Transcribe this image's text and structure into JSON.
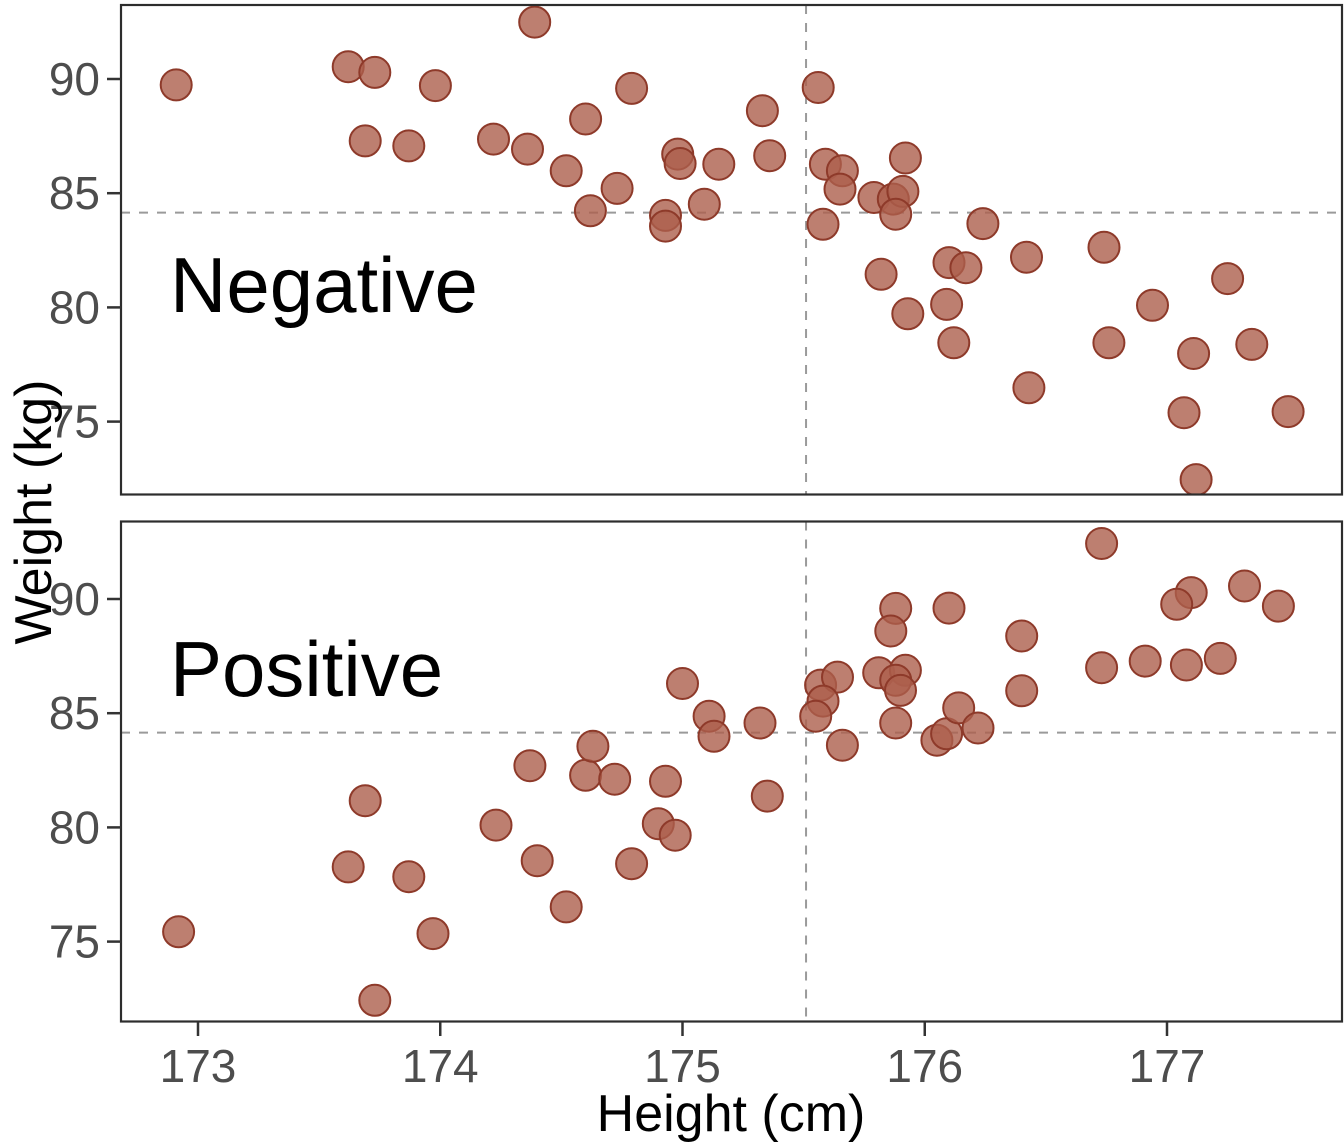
{
  "figure": {
    "background": "#ffffff",
    "tick_label_color": "#4d4d4d",
    "axis_line_color": "#2d2d2d",
    "dashed_line_color": "#9a9a9a"
  },
  "chart_data": {
    "type": "scatter",
    "xlabel": "Height (cm)",
    "ylabel": "Weight (kg)",
    "x_ticks": [
      173,
      174,
      175,
      176,
      177
    ],
    "y_ticks": [
      90,
      85,
      80,
      75
    ],
    "xlim": [
      172.7,
      177.75
    ],
    "ylim_per_panel": [
      71.4,
      93.4
    ],
    "grid": false,
    "legend_position": "none",
    "reference_lines": {
      "vertical_x": 175.51,
      "horizontal_y": 84.15,
      "style": "dashed",
      "color": "#9a9a9a"
    },
    "point_style": {
      "fill": "#ad5f4c",
      "fill_opacity": 0.8,
      "stroke": "#8e3a2a",
      "stroke_width": 2,
      "radius_px": 15.5
    },
    "facets": [
      {
        "label": "Negative",
        "points": [
          [
            172.91,
            89.74
          ],
          [
            173.62,
            90.54
          ],
          [
            173.73,
            90.29
          ],
          [
            173.98,
            89.71
          ],
          [
            174.39,
            92.49
          ],
          [
            174.79,
            89.59
          ],
          [
            174.6,
            88.25
          ],
          [
            173.69,
            87.29
          ],
          [
            173.87,
            87.07
          ],
          [
            174.22,
            87.37
          ],
          [
            174.36,
            86.93
          ],
          [
            174.52,
            85.98
          ],
          [
            174.73,
            85.21
          ],
          [
            174.62,
            84.23
          ],
          [
            174.98,
            86.71
          ],
          [
            174.99,
            86.3
          ],
          [
            175.15,
            86.27
          ],
          [
            175.09,
            84.52
          ],
          [
            174.93,
            84.03
          ],
          [
            174.93,
            83.56
          ],
          [
            175.56,
            89.63
          ],
          [
            175.33,
            88.61
          ],
          [
            175.36,
            86.64
          ],
          [
            175.59,
            86.27
          ],
          [
            175.66,
            85.98
          ],
          [
            175.65,
            85.18
          ],
          [
            175.92,
            86.54
          ],
          [
            175.79,
            84.81
          ],
          [
            175.87,
            84.74
          ],
          [
            175.91,
            85.08
          ],
          [
            175.88,
            84.08
          ],
          [
            175.58,
            83.64
          ],
          [
            176.24,
            83.67
          ],
          [
            175.82,
            81.45
          ],
          [
            176.1,
            81.96
          ],
          [
            176.17,
            81.74
          ],
          [
            176.42,
            82.2
          ],
          [
            176.74,
            82.63
          ],
          [
            175.93,
            79.72
          ],
          [
            176.09,
            80.13
          ],
          [
            176.12,
            78.45
          ],
          [
            176.43,
            76.48
          ],
          [
            176.76,
            78.45
          ],
          [
            176.94,
            80.09
          ],
          [
            177.11,
            77.98
          ],
          [
            177.25,
            81.26
          ],
          [
            177.35,
            78.38
          ],
          [
            177.07,
            75.39
          ],
          [
            177.5,
            75.44
          ],
          [
            177.12,
            72.46
          ]
        ]
      },
      {
        "label": "Positive",
        "points": [
          [
            172.92,
            75.43
          ],
          [
            173.69,
            81.17
          ],
          [
            173.62,
            78.27
          ],
          [
            173.87,
            77.84
          ],
          [
            173.97,
            75.35
          ],
          [
            173.73,
            72.43
          ],
          [
            174.23,
            80.1
          ],
          [
            174.4,
            78.54
          ],
          [
            174.52,
            76.52
          ],
          [
            174.37,
            82.7
          ],
          [
            174.6,
            82.28
          ],
          [
            174.72,
            82.11
          ],
          [
            174.93,
            82.02
          ],
          [
            174.63,
            83.55
          ],
          [
            174.79,
            78.41
          ],
          [
            174.9,
            80.16
          ],
          [
            174.97,
            79.66
          ],
          [
            175.0,
            86.3
          ],
          [
            175.11,
            84.87
          ],
          [
            175.13,
            83.99
          ],
          [
            176.73,
            92.43
          ],
          [
            177.1,
            90.28
          ],
          [
            177.04,
            89.77
          ],
          [
            177.32,
            90.57
          ],
          [
            177.46,
            89.69
          ],
          [
            175.88,
            89.59
          ],
          [
            175.86,
            88.6
          ],
          [
            176.1,
            89.6
          ],
          [
            176.4,
            88.38
          ],
          [
            176.4,
            85.98
          ],
          [
            176.73,
            86.99
          ],
          [
            176.91,
            87.28
          ],
          [
            177.08,
            87.11
          ],
          [
            177.22,
            87.4
          ],
          [
            175.81,
            86.77
          ],
          [
            175.92,
            86.88
          ],
          [
            175.88,
            86.44
          ],
          [
            175.9,
            86.0
          ],
          [
            175.57,
            86.23
          ],
          [
            175.64,
            86.58
          ],
          [
            175.58,
            85.53
          ],
          [
            175.55,
            84.87
          ],
          [
            175.32,
            84.57
          ],
          [
            175.66,
            83.6
          ],
          [
            176.05,
            83.82
          ],
          [
            176.09,
            84.1
          ],
          [
            176.14,
            85.23
          ],
          [
            176.22,
            84.35
          ],
          [
            175.88,
            84.57
          ],
          [
            175.35,
            81.37
          ]
        ]
      }
    ]
  }
}
